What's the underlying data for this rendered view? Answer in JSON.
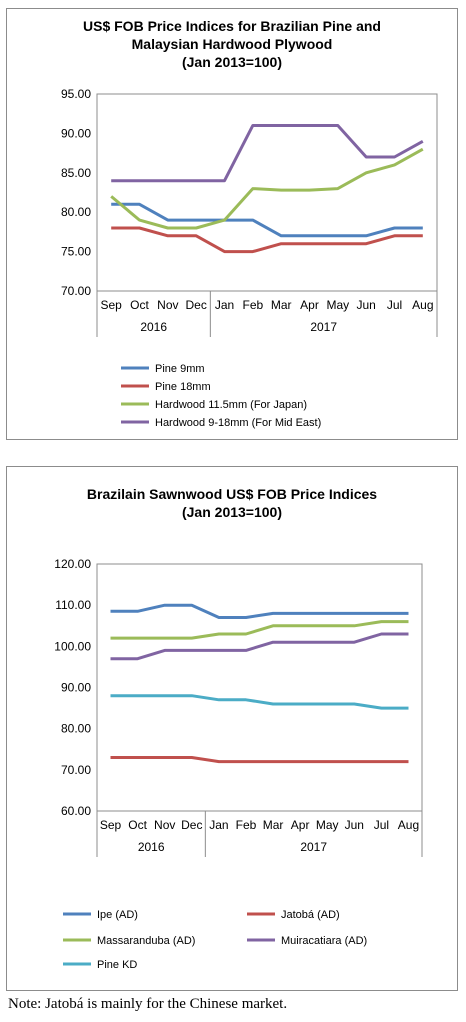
{
  "chart_data": [
    {
      "type": "line",
      "title_lines": [
        "US$ FOB Price Indices for Brazilian Pine and",
        "Malaysian Hardwood Plywood",
        "(Jan 2013=100)"
      ],
      "categories": [
        "Sep",
        "Oct",
        "Nov",
        "Dec",
        "Jan",
        "Feb",
        "Mar",
        "Apr",
        "May",
        "Jun",
        "Jul",
        "Aug"
      ],
      "year_groups": [
        {
          "label": "2016",
          "span": 4
        },
        {
          "label": "2017",
          "span": 8
        }
      ],
      "ylim": [
        70,
        95
      ],
      "y_ticks": [
        "70.00",
        "75.00",
        "80.00",
        "85.00",
        "90.00",
        "95.00"
      ],
      "grid": false,
      "legend_position": "bottom",
      "series": [
        {
          "name": "Pine 9mm",
          "color": "#4f81bd",
          "values": [
            81,
            81,
            79,
            79,
            79,
            79,
            77,
            77,
            77,
            77,
            78,
            78
          ]
        },
        {
          "name": "Pine 18mm",
          "color": "#c0504d",
          "values": [
            78,
            78,
            77,
            77,
            75,
            75,
            76,
            76,
            76,
            76,
            77,
            77
          ]
        },
        {
          "name": "Hardwood 11.5mm (For Japan)",
          "color": "#9bbb59",
          "values": [
            82,
            79,
            78,
            78,
            79,
            83,
            82.8,
            82.8,
            83,
            85,
            86,
            88
          ]
        },
        {
          "name": "Hardwood 9-18mm (For Mid East)",
          "color": "#8064a2",
          "values": [
            84,
            84,
            84,
            84,
            84,
            91,
            91,
            91,
            91,
            87,
            87,
            89
          ]
        }
      ]
    },
    {
      "type": "line",
      "title_lines": [
        "Brazilain Sawnwood US$ FOB Price Indices",
        "(Jan 2013=100)"
      ],
      "categories": [
        "Sep",
        "Oct",
        "Nov",
        "Dec",
        "Jan",
        "Feb",
        "Mar",
        "Apr",
        "May",
        "Jun",
        "Jul",
        "Aug"
      ],
      "year_groups": [
        {
          "label": "2016",
          "span": 4
        },
        {
          "label": "2017",
          "span": 8
        }
      ],
      "ylim": [
        60,
        120
      ],
      "y_ticks": [
        "60.00",
        "70.00",
        "80.00",
        "90.00",
        "100.00",
        "110.00",
        "120.00"
      ],
      "grid": false,
      "legend_position": "bottom",
      "series": [
        {
          "name": "Ipe (AD)",
          "color": "#4f81bd",
          "values": [
            108.5,
            108.5,
            110,
            110,
            107,
            107,
            108,
            108,
            108,
            108,
            108,
            108
          ]
        },
        {
          "name": "Jatobá (AD)",
          "color": "#c0504d",
          "values": [
            73,
            73,
            73,
            73,
            72,
            72,
            72,
            72,
            72,
            72,
            72,
            72
          ]
        },
        {
          "name": "Massaranduba (AD)",
          "color": "#9bbb59",
          "values": [
            102,
            102,
            102,
            102,
            103,
            103,
            105,
            105,
            105,
            105,
            106,
            106
          ]
        },
        {
          "name": "Muiracatiara (AD)",
          "color": "#8064a2",
          "values": [
            97,
            97,
            99,
            99,
            99,
            99,
            101,
            101,
            101,
            101,
            103,
            103
          ]
        },
        {
          "name": "Pine KD",
          "color": "#4bacc6",
          "values": [
            88,
            88,
            88,
            88,
            87,
            87,
            86,
            86,
            86,
            86,
            85,
            85
          ]
        }
      ]
    }
  ],
  "note": "Note: Jatobá is mainly for the Chinese market."
}
